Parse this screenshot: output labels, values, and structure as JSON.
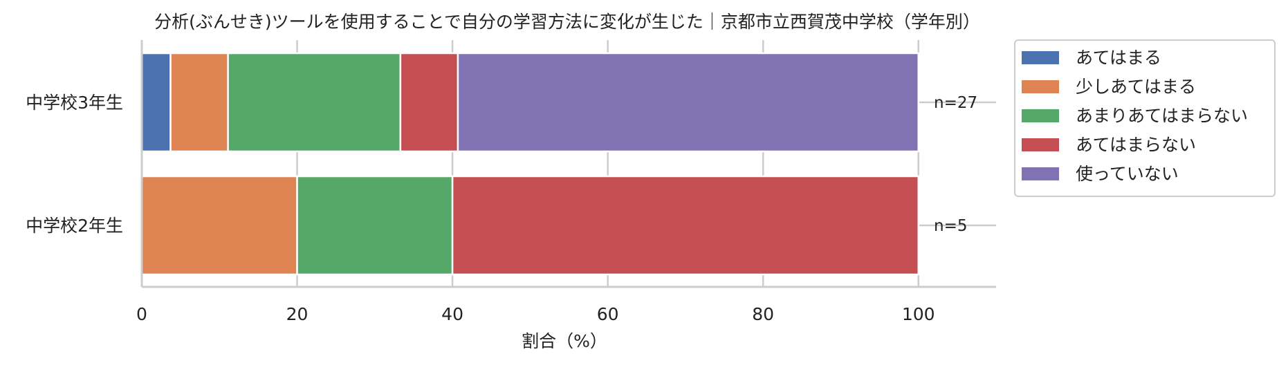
{
  "chart_data": {
    "type": "bar",
    "orientation": "horizontal",
    "stacked": true,
    "title": "分析(ぶんせき)ツールを使用することで自分の学習方法に変化が生じた｜京都市立西賀茂中学校（学年別）",
    "xlabel": "割合（%）",
    "ylabel": "",
    "xlim": [
      0,
      110
    ],
    "xticks": [
      0,
      20,
      40,
      60,
      80,
      100
    ],
    "grid": true,
    "legend_position": "outside-top-right",
    "categories": [
      "中学校3年生",
      "中学校2年生"
    ],
    "n_labels": [
      "n=27",
      "n=5"
    ],
    "series": [
      {
        "name": "あてはまる",
        "color": "#4c72b0",
        "values": [
          3.7,
          0
        ]
      },
      {
        "name": "少しあてはまる",
        "color": "#dd8452",
        "values": [
          7.4,
          20
        ]
      },
      {
        "name": "あまりあてはまらない",
        "color": "#55a868",
        "values": [
          22.2,
          20
        ]
      },
      {
        "name": "あてはまらない",
        "color": "#c44e52",
        "values": [
          7.4,
          60
        ]
      },
      {
        "name": "使っていない",
        "color": "#8172b3",
        "values": [
          59.3,
          0
        ]
      }
    ]
  }
}
